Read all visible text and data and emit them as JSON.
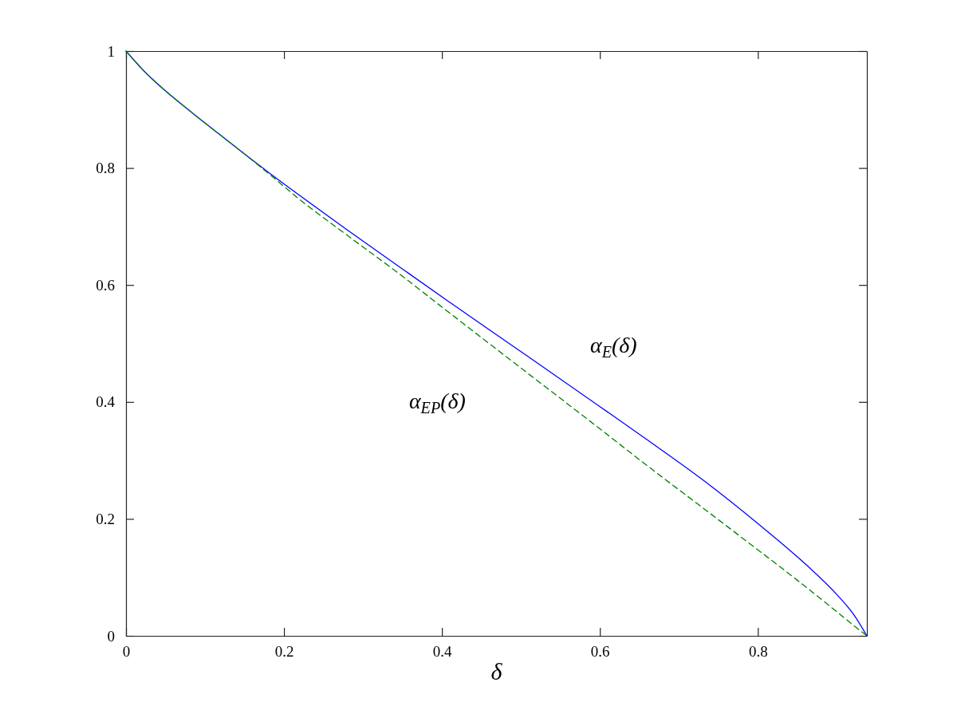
{
  "chart_data": {
    "type": "line",
    "xlabel": "δ",
    "x": [
      0,
      0.022,
      0.049,
      0.086,
      0.117,
      0.15,
      0.181,
      0.221,
      0.278,
      0.344,
      0.406,
      0.5,
      0.6,
      0.657,
      0.732,
      0.8,
      0.85,
      0.901,
      0.921,
      0.938
    ],
    "series": [
      {
        "name": "α$_{E}$(δ)",
        "color": "#0000ff",
        "line_style": "solid",
        "values": [
          1,
          0.967,
          0.933,
          0.892,
          0.859,
          0.824,
          0.792,
          0.752,
          0.696,
          0.633,
          0.574,
          0.486,
          0.392,
          0.338,
          0.265,
          0.192,
          0.135,
          0.069,
          0.037,
          0
        ]
      },
      {
        "name": "α$_{EP}$(δ)",
        "color": "#008000",
        "line_style": "dashed",
        "values": [
          1,
          0.967,
          0.933,
          0.892,
          0.859,
          0.824,
          0.79,
          0.745,
          0.687,
          0.621,
          0.556,
          0.458,
          0.354,
          0.294,
          0.217,
          0.147,
          0.095,
          0.04,
          0.018,
          0
        ]
      }
    ],
    "xlim": [
      0,
      0.938
    ],
    "ylim": [
      0,
      1
    ],
    "xticks": [
      0,
      0.2,
      0.4,
      0.6,
      0.8
    ],
    "yticks": [
      0,
      0.2,
      0.4,
      0.6,
      0.8,
      1
    ]
  }
}
